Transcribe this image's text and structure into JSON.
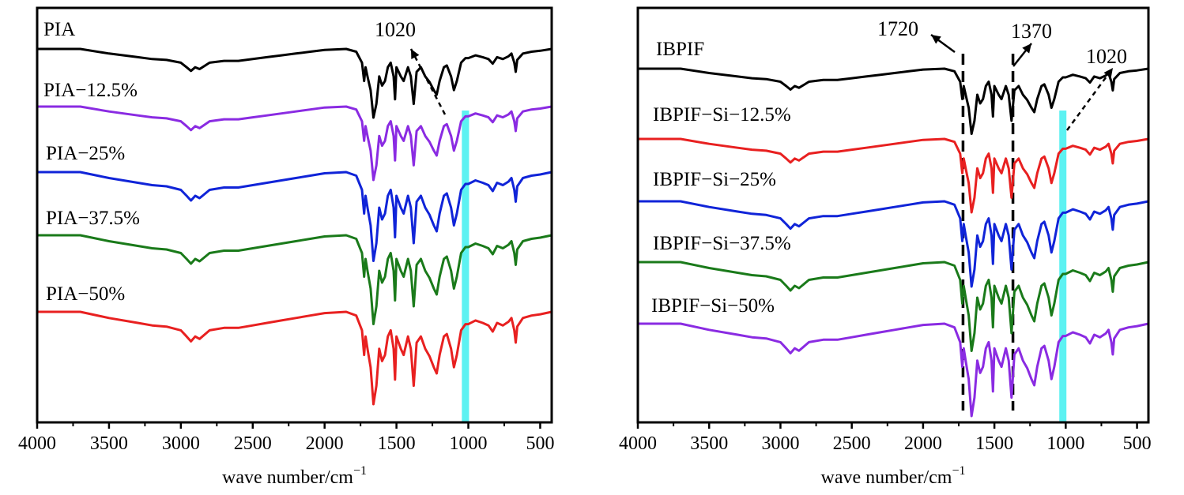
{
  "chart_data": [
    {
      "type": "line",
      "xlabel": "wave number/cm",
      "xlabel_sup": "−1",
      "xlim": [
        4000,
        420
      ],
      "xticks": [
        4000,
        3500,
        3000,
        2500,
        2000,
        1500,
        1000,
        500
      ],
      "y_axis": "stacked offset spectra (no y tick labels)",
      "grid": false,
      "annotations": [
        {
          "text": "1020",
          "x": 1020,
          "arrow": true,
          "arrow_style": "dashed"
        }
      ],
      "highlight_band": {
        "from": 1045,
        "to": 995,
        "color": "#40f0f0"
      },
      "series": [
        {
          "name": "PIA",
          "color": "#000000"
        },
        {
          "name": "PIA−12.5%",
          "color": "#8a2be2"
        },
        {
          "name": "PIA−25%",
          "color": "#1024d8"
        },
        {
          "name": "PIA−37.5%",
          "color": "#1a7a1a"
        },
        {
          "name": "PIA−50%",
          "color": "#e82020"
        }
      ]
    },
    {
      "type": "line",
      "xlabel": "wave number/cm",
      "xlabel_sup": "−1",
      "xlim": [
        4000,
        420
      ],
      "xticks": [
        4000,
        3500,
        3000,
        2500,
        2000,
        1500,
        1000,
        500
      ],
      "y_axis": "stacked offset spectra (no y tick labels)",
      "grid": false,
      "annotations": [
        {
          "text": "1720",
          "x": 1720,
          "arrow": true,
          "marker_line": "dashed"
        },
        {
          "text": "1370",
          "x": 1370,
          "arrow": true,
          "marker_line": "dashed"
        },
        {
          "text": "1020",
          "x": 1020,
          "arrow": true,
          "arrow_style": "dashed"
        }
      ],
      "highlight_band": {
        "from": 1045,
        "to": 995,
        "color": "#40f0f0"
      },
      "series": [
        {
          "name": "IBPIF",
          "color": "#000000"
        },
        {
          "name": "IBPIF−Si−12.5%",
          "color": "#e82020"
        },
        {
          "name": "IBPIF−Si−25%",
          "color": "#1024d8"
        },
        {
          "name": "IBPIF−Si−37.5%",
          "color": "#1a7a1a"
        },
        {
          "name": "IBPIF−Si−50%",
          "color": "#8a2be2"
        }
      ]
    }
  ]
}
